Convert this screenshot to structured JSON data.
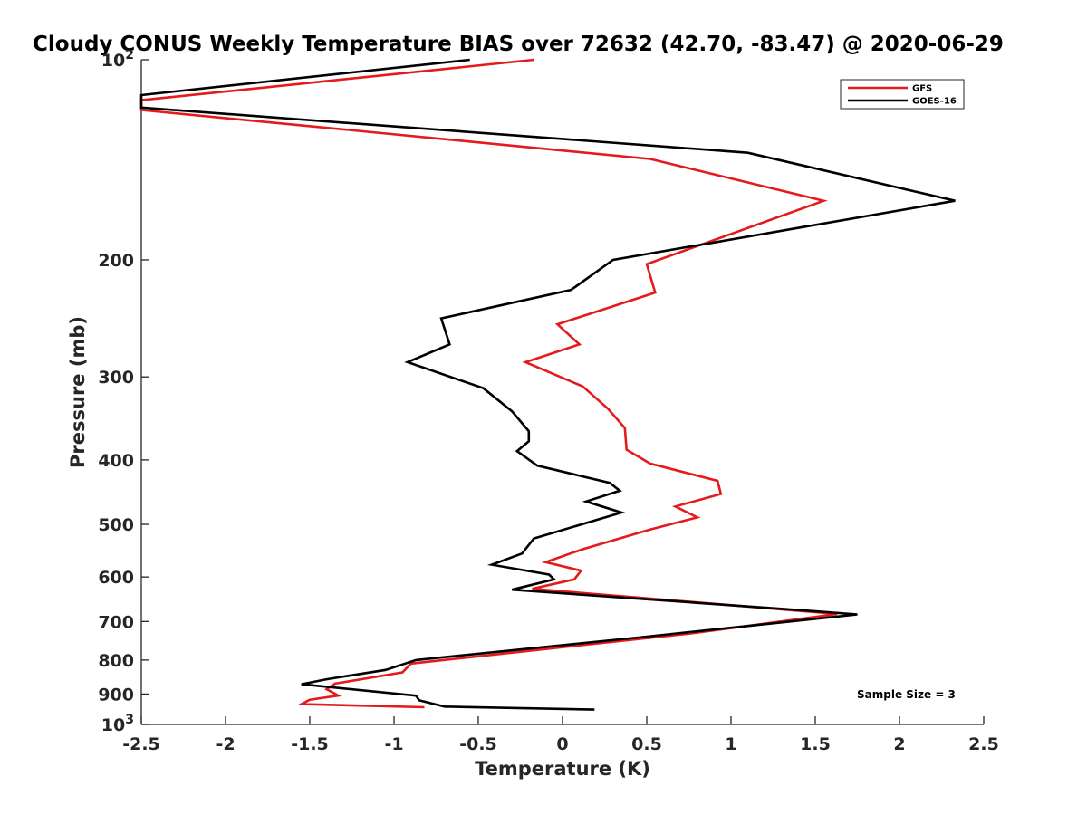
{
  "chart_data": {
    "type": "line",
    "title": "Cloudy CONUS Weekly Temperature BIAS over 72632 (42.70, -83.47) @ 2020-06-29",
    "xlabel": "Temperature (K)",
    "ylabel": "Pressure (mb)",
    "xlim": [
      -2.5,
      2.5
    ],
    "ylim": [
      100,
      1000
    ],
    "y_scale": "log",
    "y_reversed": true,
    "grid": false,
    "legend_position": "top-right",
    "xticks": [
      "-2.5",
      "-2",
      "-1.5",
      "-1",
      "-0.5",
      "0",
      "0.5",
      "1",
      "1.5",
      "2",
      "2.5"
    ],
    "xtick_values": [
      -2.5,
      -2,
      -1.5,
      -1,
      -0.5,
      0,
      0.5,
      1,
      1.5,
      2,
      2.5
    ],
    "yticks": [
      {
        "value": 100,
        "base": "10",
        "exp": "2",
        "label": ""
      },
      {
        "value": 200,
        "label": "200"
      },
      {
        "value": 300,
        "label": "300"
      },
      {
        "value": 400,
        "label": "400"
      },
      {
        "value": 500,
        "label": "500"
      },
      {
        "value": 600,
        "label": "600"
      },
      {
        "value": 700,
        "label": "700"
      },
      {
        "value": 800,
        "label": "800"
      },
      {
        "value": 900,
        "label": "900"
      },
      {
        "value": 1000,
        "base": "10",
        "exp": "3",
        "label": ""
      }
    ],
    "series": [
      {
        "name": "GFS",
        "color": "#e41a1c",
        "points": [
          [
            -0.17,
            100
          ],
          [
            -2.5,
            115
          ],
          [
            -2.5,
            119
          ],
          [
            0.52,
            141
          ],
          [
            1.55,
            163
          ],
          [
            0.5,
            203
          ],
          [
            0.55,
            224
          ],
          [
            -0.03,
            250
          ],
          [
            0.1,
            268
          ],
          [
            -0.22,
            285
          ],
          [
            0.12,
            310
          ],
          [
            0.27,
            335
          ],
          [
            0.37,
            358
          ],
          [
            0.38,
            386
          ],
          [
            0.52,
            405
          ],
          [
            0.92,
            430
          ],
          [
            0.94,
            450
          ],
          [
            0.67,
            470
          ],
          [
            0.8,
            488
          ],
          [
            0.52,
            509
          ],
          [
            0.12,
            545
          ],
          [
            -0.1,
            570
          ],
          [
            0.11,
            587
          ],
          [
            0.07,
            605
          ],
          [
            -0.18,
            625
          ],
          [
            1.63,
            682
          ],
          [
            0.75,
            730
          ],
          [
            -0.1,
            770
          ],
          [
            -0.9,
            810
          ],
          [
            -0.95,
            835
          ],
          [
            -1.35,
            868
          ],
          [
            -1.4,
            885
          ],
          [
            -1.33,
            905
          ],
          [
            -1.5,
            918
          ],
          [
            -1.55,
            932
          ],
          [
            -0.82,
            942
          ]
        ]
      },
      {
        "name": "GOES-16",
        "color": "#000000",
        "points": [
          [
            -0.55,
            100
          ],
          [
            -2.5,
            113
          ],
          [
            -2.5,
            118
          ],
          [
            1.1,
            138
          ],
          [
            2.33,
            163
          ],
          [
            0.3,
            200
          ],
          [
            0.05,
            222
          ],
          [
            -0.72,
            245
          ],
          [
            -0.67,
            268
          ],
          [
            -0.92,
            285
          ],
          [
            -0.47,
            312
          ],
          [
            -0.3,
            338
          ],
          [
            -0.2,
            362
          ],
          [
            -0.2,
            375
          ],
          [
            -0.27,
            388
          ],
          [
            -0.15,
            408
          ],
          [
            0.28,
            433
          ],
          [
            0.34,
            445
          ],
          [
            0.14,
            462
          ],
          [
            0.35,
            480
          ],
          [
            -0.17,
            525
          ],
          [
            -0.24,
            553
          ],
          [
            -0.42,
            575
          ],
          [
            -0.08,
            595
          ],
          [
            -0.05,
            605
          ],
          [
            -0.3,
            627
          ],
          [
            1.3,
            670
          ],
          [
            1.75,
            683
          ],
          [
            0.45,
            740
          ],
          [
            -0.87,
            800
          ],
          [
            -1.05,
            828
          ],
          [
            -1.4,
            855
          ],
          [
            -1.55,
            870
          ],
          [
            -0.87,
            905
          ],
          [
            -0.85,
            920
          ],
          [
            -0.7,
            940
          ],
          [
            0.19,
            950
          ]
        ]
      }
    ],
    "annotation": "Sample Size = 3"
  }
}
